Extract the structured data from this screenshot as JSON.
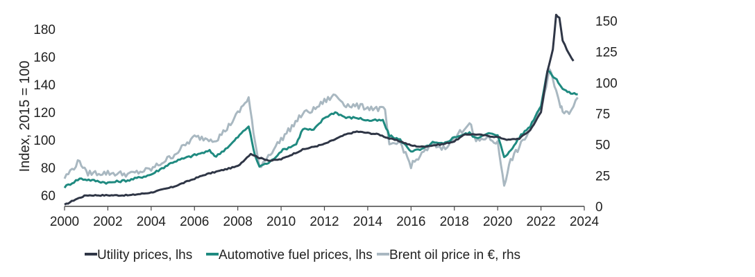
{
  "chart_data": {
    "type": "line",
    "title": "",
    "ylabel": "Index, 2015 = 100",
    "xlim": [
      2000,
      2024
    ],
    "ylim_left": [
      52,
      192
    ],
    "ylim_right": [
      0,
      150
    ],
    "x_ticks": [
      "2000",
      "2002",
      "2004",
      "2006",
      "2008",
      "2010",
      "2012",
      "2014",
      "2016",
      "2018",
      "2020",
      "2022",
      "2024"
    ],
    "y_ticks_left": [
      "60",
      "80",
      "100",
      "120",
      "140",
      "160",
      "180"
    ],
    "y_ticks_right": [
      "0",
      "25",
      "50",
      "75",
      "100",
      "125",
      "150"
    ],
    "series": [
      {
        "name": "Utility prices, lhs",
        "axis": "left",
        "color": "#2f3646",
        "points": [
          [
            2000,
            53
          ],
          [
            2000.5,
            57
          ],
          [
            2001,
            60
          ],
          [
            2002,
            60
          ],
          [
            2003,
            60
          ],
          [
            2004,
            62
          ],
          [
            2005,
            66
          ],
          [
            2006,
            72
          ],
          [
            2006.5,
            75
          ],
          [
            2007,
            77
          ],
          [
            2008,
            81
          ],
          [
            2008.6,
            90
          ],
          [
            2009,
            87
          ],
          [
            2009.5,
            85
          ],
          [
            2010,
            86
          ],
          [
            2011,
            93
          ],
          [
            2012,
            97
          ],
          [
            2013,
            104
          ],
          [
            2013.5,
            106
          ],
          [
            2014,
            105
          ],
          [
            2014.5,
            104
          ],
          [
            2015,
            101
          ],
          [
            2015.5,
            99
          ],
          [
            2016,
            96
          ],
          [
            2016.5,
            95
          ],
          [
            2017,
            96
          ],
          [
            2017.5,
            97
          ],
          [
            2018,
            99
          ],
          [
            2018.5,
            104
          ],
          [
            2019,
            104
          ],
          [
            2019.5,
            103
          ],
          [
            2020,
            102
          ],
          [
            2020.5,
            100
          ],
          [
            2021,
            101
          ],
          [
            2021.5,
            107
          ],
          [
            2022,
            120
          ],
          [
            2022.3,
            150
          ],
          [
            2022.55,
            165
          ],
          [
            2022.7,
            190
          ],
          [
            2022.85,
            188
          ],
          [
            2023,
            172
          ],
          [
            2023.2,
            165
          ],
          [
            2023.5,
            157
          ]
        ]
      },
      {
        "name": "Automotive fuel prices, lhs",
        "axis": "left",
        "color": "#1f8a80",
        "points": [
          [
            2000,
            66
          ],
          [
            2000.7,
            72
          ],
          [
            2001.2,
            71
          ],
          [
            2002,
            69
          ],
          [
            2003,
            71
          ],
          [
            2004,
            75
          ],
          [
            2005,
            84
          ],
          [
            2006,
            89
          ],
          [
            2006.7,
            92
          ],
          [
            2007,
            88
          ],
          [
            2007.7,
            97
          ],
          [
            2008,
            102
          ],
          [
            2008.5,
            110
          ],
          [
            2008.8,
            88
          ],
          [
            2009,
            81
          ],
          [
            2009.5,
            84
          ],
          [
            2010,
            92
          ],
          [
            2010.7,
            97
          ],
          [
            2011,
            108
          ],
          [
            2011.5,
            107
          ],
          [
            2012,
            116
          ],
          [
            2012.5,
            120
          ],
          [
            2013,
            116
          ],
          [
            2013.5,
            116
          ],
          [
            2014,
            114
          ],
          [
            2014.7,
            114
          ],
          [
            2015,
            103
          ],
          [
            2015.5,
            100
          ],
          [
            2016,
            92
          ],
          [
            2016.5,
            93
          ],
          [
            2017,
            98
          ],
          [
            2017.5,
            97
          ],
          [
            2018,
            102
          ],
          [
            2018.7,
            105
          ],
          [
            2019,
            101
          ],
          [
            2019.5,
            105
          ],
          [
            2020,
            103
          ],
          [
            2020.3,
            88
          ],
          [
            2020.6,
            92
          ],
          [
            2021,
            102
          ],
          [
            2021.5,
            110
          ],
          [
            2022,
            125
          ],
          [
            2022.3,
            150
          ],
          [
            2022.5,
            147
          ],
          [
            2022.8,
            142
          ],
          [
            2023,
            137
          ],
          [
            2023.3,
            134
          ],
          [
            2023.7,
            133
          ]
        ]
      },
      {
        "name": "Brent oil price in €, rhs",
        "axis": "right",
        "color": "#a9b8c1",
        "points": [
          [
            2000,
            23
          ],
          [
            2000.7,
            37
          ],
          [
            2001,
            27
          ],
          [
            2002,
            27
          ],
          [
            2003,
            26
          ],
          [
            2004,
            30
          ],
          [
            2005,
            41
          ],
          [
            2006,
            56
          ],
          [
            2007,
            54
          ],
          [
            2007.5,
            63
          ],
          [
            2008,
            75
          ],
          [
            2008.5,
            88
          ],
          [
            2008.8,
            50
          ],
          [
            2009,
            32
          ],
          [
            2009.5,
            43
          ],
          [
            2010,
            54
          ],
          [
            2011,
            75
          ],
          [
            2011.5,
            78
          ],
          [
            2012,
            85
          ],
          [
            2012.5,
            90
          ],
          [
            2013,
            82
          ],
          [
            2013.5,
            81
          ],
          [
            2014,
            80
          ],
          [
            2014.8,
            78
          ],
          [
            2015,
            48
          ],
          [
            2015.5,
            52
          ],
          [
            2016,
            33
          ],
          [
            2016.5,
            42
          ],
          [
            2017,
            50
          ],
          [
            2017.5,
            47
          ],
          [
            2018,
            55
          ],
          [
            2018.7,
            68
          ],
          [
            2019,
            52
          ],
          [
            2019.5,
            56
          ],
          [
            2020,
            51
          ],
          [
            2020.3,
            18
          ],
          [
            2020.6,
            37
          ],
          [
            2021,
            48
          ],
          [
            2021.5,
            62
          ],
          [
            2022,
            80
          ],
          [
            2022.4,
            110
          ],
          [
            2022.7,
            95
          ],
          [
            2022.9,
            82
          ],
          [
            2023,
            78
          ],
          [
            2023.3,
            75
          ],
          [
            2023.5,
            82
          ],
          [
            2023.7,
            88
          ]
        ]
      }
    ]
  }
}
